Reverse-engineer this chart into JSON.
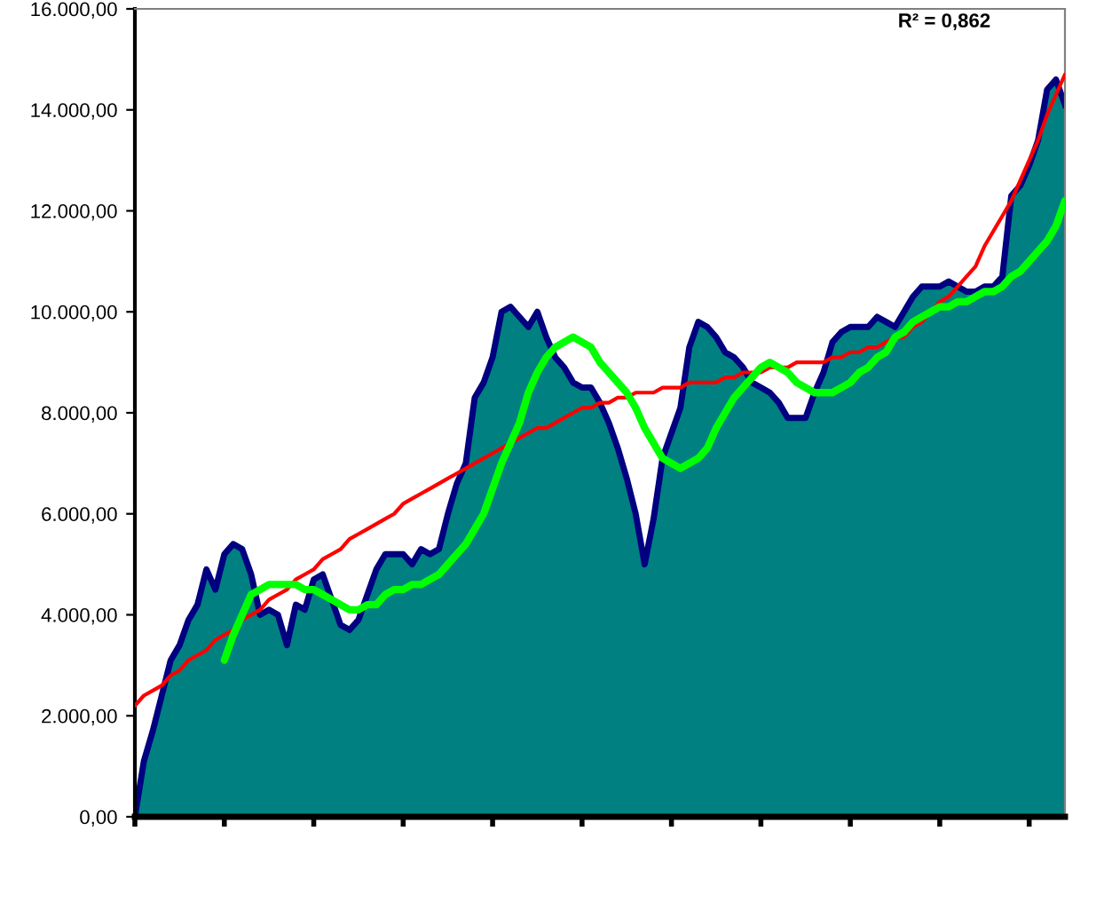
{
  "chart_data": {
    "type": "area",
    "categories": [
      null,
      null,
      null,
      null,
      null,
      null,
      null,
      null,
      null,
      null,
      null,
      null,
      null,
      null,
      null,
      null,
      null,
      null,
      null,
      null,
      null,
      null,
      null,
      null,
      null,
      null,
      null,
      null,
      null,
      null,
      null,
      null,
      null,
      null,
      null,
      null,
      null,
      null,
      null,
      null,
      null,
      null,
      null,
      null,
      null,
      null,
      null,
      null,
      null,
      null,
      null,
      null,
      null,
      null,
      null,
      null,
      null,
      null,
      null,
      null,
      null,
      null,
      null,
      null,
      null,
      null,
      null,
      null,
      null,
      null,
      null,
      null,
      null,
      null,
      null,
      null,
      null,
      null,
      null,
      null,
      null,
      null,
      null,
      null,
      null,
      null,
      null,
      null,
      null,
      null,
      null,
      null,
      null,
      null,
      null,
      null,
      null,
      null,
      null,
      null,
      null,
      null,
      null,
      null,
      null
    ],
    "series": [
      {
        "color": "#008080",
        "values": [
          0,
          1100,
          1700,
          2400,
          3100,
          3400,
          3900,
          4200,
          4900,
          4500,
          5200,
          5400,
          5300,
          4800,
          4000,
          4100,
          4000,
          3400,
          4200,
          4100,
          4700,
          4800,
          4300,
          3800,
          3700,
          3900,
          4400,
          4900,
          5200,
          5200,
          5200,
          5000,
          5300,
          5200,
          5300,
          6000,
          6600,
          7000,
          8300,
          8600,
          9100,
          10000,
          10100,
          9900,
          9700,
          10000,
          9500,
          9100,
          8900,
          8600,
          8500,
          8500,
          8200,
          7800,
          7300,
          6700,
          6000,
          5000,
          5900,
          7100,
          7600,
          8100,
          9300,
          9800,
          9700,
          9500,
          9200,
          9100,
          8900,
          8600,
          8500,
          8400,
          8200,
          7900,
          7900,
          7900,
          8400,
          8800,
          9400,
          9600,
          9700,
          9700,
          9700,
          9900,
          9800,
          9700,
          10000,
          10300,
          10500,
          10500,
          10500,
          10600,
          10500,
          10400,
          10400,
          10500,
          10500,
          10700,
          12300,
          12500,
          12900,
          13400,
          14400,
          14600,
          14100
        ]
      },
      {
        "type": "line",
        "color": "#ff0000",
        "values": [
          2200,
          2400,
          2500,
          2600,
          2800,
          2900,
          3100,
          3200,
          3300,
          3500,
          3600,
          3700,
          3900,
          4000,
          4100,
          4300,
          4400,
          4500,
          4700,
          4800,
          4900,
          5100,
          5200,
          5300,
          5500,
          5600,
          5700,
          5800,
          5900,
          6000,
          6200,
          6300,
          6400,
          6500,
          6600,
          6700,
          6800,
          6900,
          7000,
          7100,
          7200,
          7300,
          7400,
          7500,
          7600,
          7700,
          7700,
          7800,
          7900,
          8000,
          8100,
          8100,
          8200,
          8200,
          8300,
          8300,
          8400,
          8400,
          8400,
          8500,
          8500,
          8500,
          8600,
          8600,
          8600,
          8600,
          8700,
          8700,
          8800,
          8800,
          8800,
          8900,
          8900,
          8900,
          9000,
          9000,
          9000,
          9000,
          9100,
          9100,
          9200,
          9200,
          9300,
          9300,
          9400,
          9500,
          9500,
          9700,
          9800,
          10000,
          10200,
          10300,
          10500,
          10700,
          10900,
          11300,
          11600,
          11900,
          12200,
          12600,
          13000,
          13400,
          13900,
          14300,
          14700
        ]
      },
      {
        "type": "line",
        "color": "#00ff00",
        "values": [
          null,
          null,
          null,
          null,
          null,
          null,
          null,
          null,
          null,
          null,
          3100,
          3600,
          4000,
          4400,
          4500,
          4600,
          4600,
          4600,
          4600,
          4500,
          4500,
          4400,
          4300,
          4200,
          4100,
          4100,
          4200,
          4200,
          4400,
          4500,
          4500,
          4600,
          4600,
          4700,
          4800,
          5000,
          5200,
          5400,
          5700,
          6000,
          6500,
          7000,
          7400,
          7800,
          8400,
          8800,
          9100,
          9300,
          9400,
          9500,
          9400,
          9300,
          9000,
          8800,
          8600,
          8400,
          8100,
          7700,
          7400,
          7100,
          7000,
          6900,
          7000,
          7100,
          7300,
          7700,
          8000,
          8300,
          8500,
          8700,
          8900,
          9000,
          8900,
          8800,
          8600,
          8500,
          8400,
          8400,
          8400,
          8500,
          8600,
          8800,
          8900,
          9100,
          9200,
          9500,
          9600,
          9800,
          9900,
          10000,
          10100,
          10100,
          10200,
          10200,
          10300,
          10400,
          10400,
          10500,
          10700,
          10800,
          11000,
          11200,
          11400,
          11700,
          12200
        ]
      }
    ],
    "ylim": [
      0,
      16000
    ],
    "yticks": [
      {
        "value": 0,
        "label": "0,00"
      },
      {
        "value": 2000,
        "label": "2.000,00"
      },
      {
        "value": 4000,
        "label": "4.000,00"
      },
      {
        "value": 6000,
        "label": "6.000,00"
      },
      {
        "value": 8000,
        "label": "8.000,00"
      },
      {
        "value": 10000,
        "label": "10.000,00"
      },
      {
        "value": 12000,
        "label": "12.000,00"
      },
      {
        "value": 14000,
        "label": "14.000,00"
      },
      {
        "value": 16000,
        "label": "16.000,00"
      }
    ],
    "grid": false,
    "legend": false,
    "marker": "none",
    "line_style": "solid",
    "annotations": [
      "R² = 0,862"
    ]
  }
}
